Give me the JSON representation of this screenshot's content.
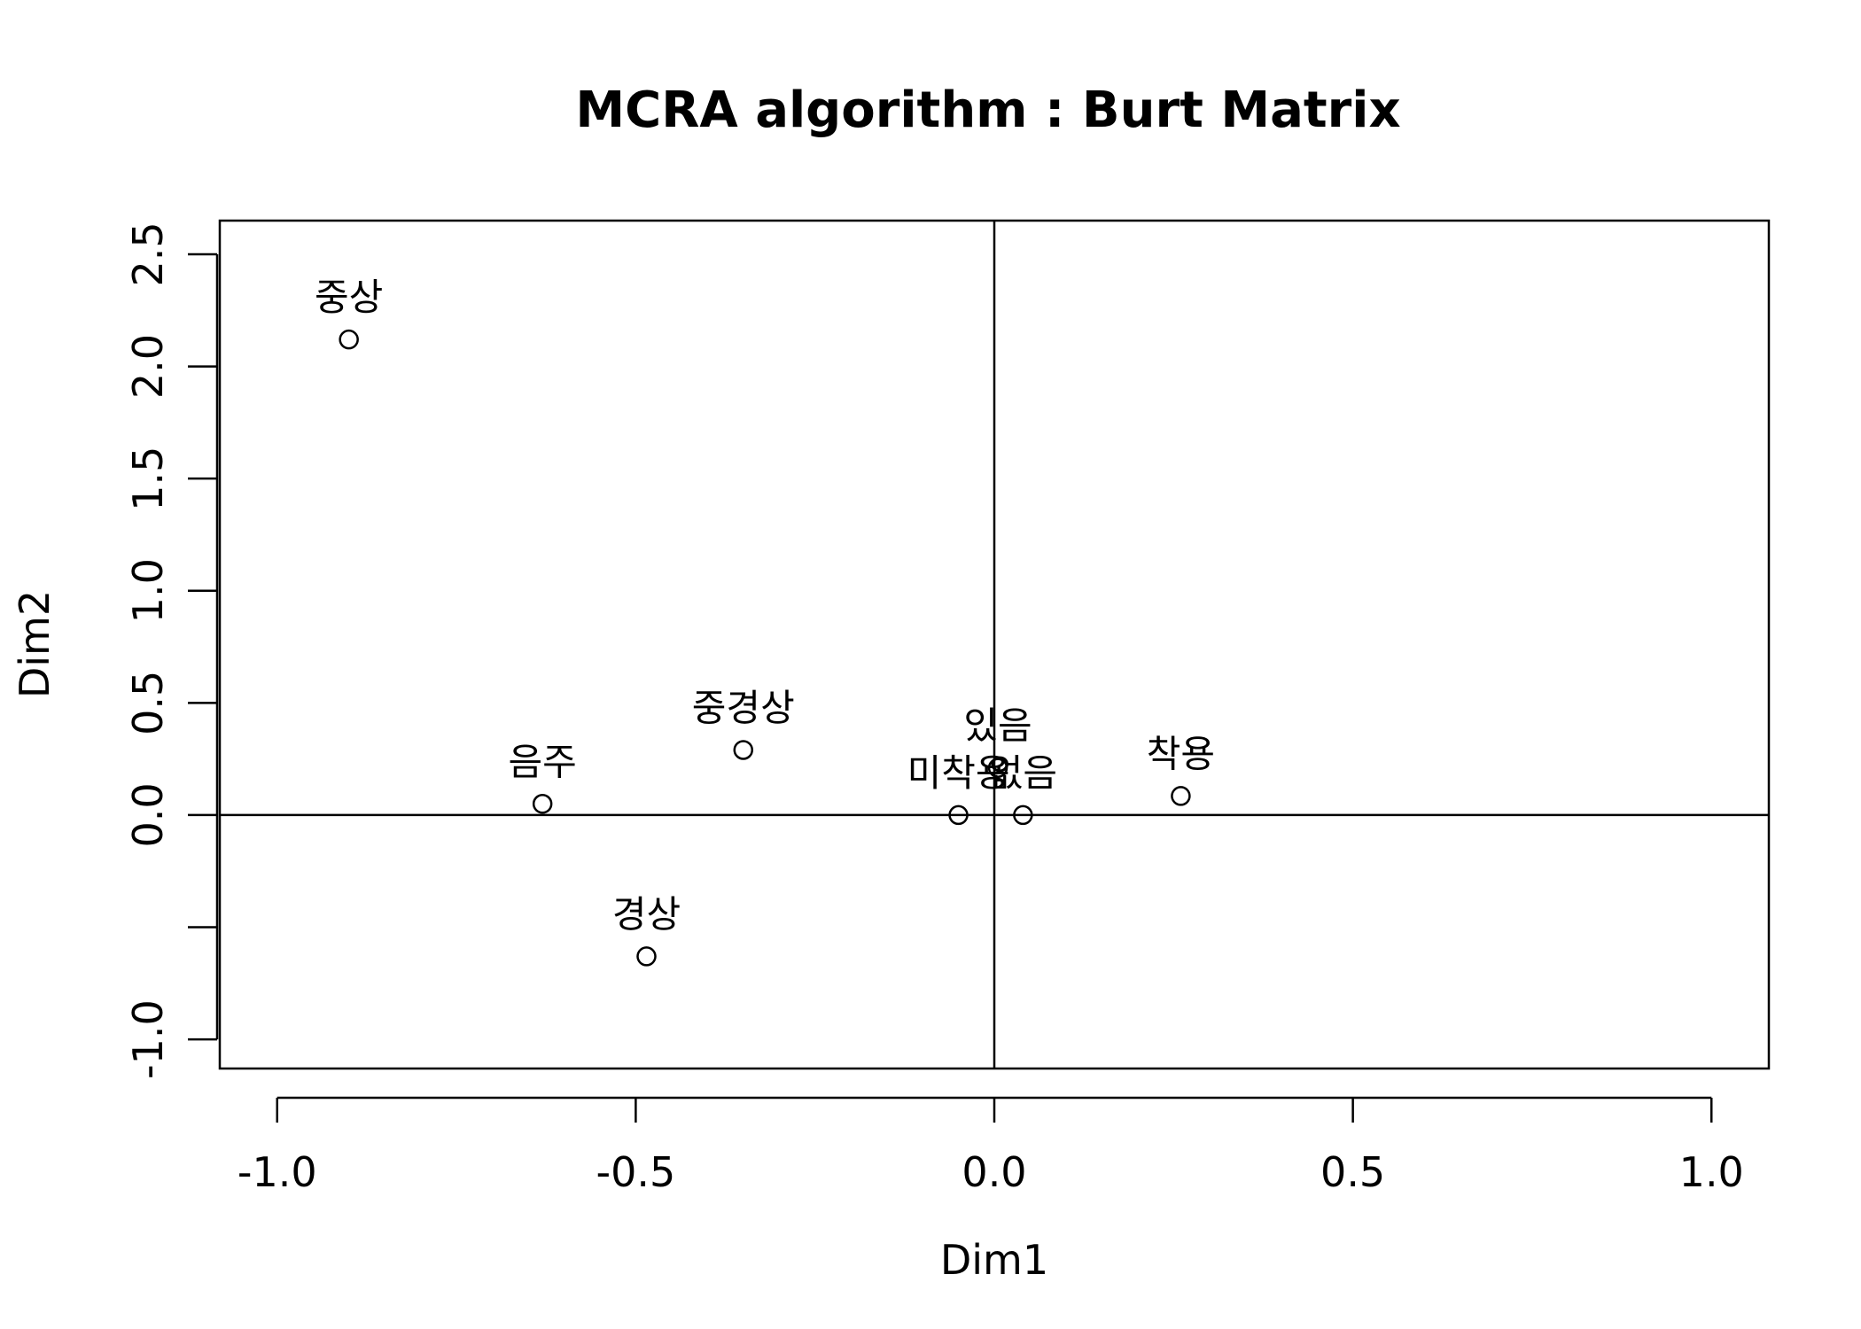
{
  "chart_data": {
    "type": "scatter",
    "title": "MCRA algorithm : Burt Matrix",
    "xlabel": "Dim1",
    "ylabel": "Dim2",
    "xlim": [
      -1.08,
      1.08
    ],
    "ylim": [
      -1.13,
      2.65
    ],
    "x_ticks": [
      {
        "value": -1.0,
        "label": "-1.0"
      },
      {
        "value": -0.5,
        "label": "-0.5"
      },
      {
        "value": 0.0,
        "label": "0.0"
      },
      {
        "value": 0.5,
        "label": "0.5"
      },
      {
        "value": 1.0,
        "label": "1.0"
      }
    ],
    "y_ticks": [
      {
        "value": -1.0,
        "label": "-1.0"
      },
      {
        "value": -0.5,
        "label": ""
      },
      {
        "value": 0.0,
        "label": "0.0"
      },
      {
        "value": 0.5,
        "label": "0.5"
      },
      {
        "value": 1.0,
        "label": "1.0"
      },
      {
        "value": 1.5,
        "label": "1.5"
      },
      {
        "value": 2.0,
        "label": "2.0"
      },
      {
        "value": 2.5,
        "label": "2.5"
      }
    ],
    "reference_lines": {
      "x": 0,
      "y": 0
    },
    "points": [
      {
        "label": "중상",
        "x": -0.9,
        "y": 2.12
      },
      {
        "label": "중경상",
        "x": -0.35,
        "y": 0.29
      },
      {
        "label": "음주",
        "x": -0.63,
        "y": 0.05
      },
      {
        "label": "경상",
        "x": -0.485,
        "y": -0.63
      },
      {
        "label": "미착용",
        "x": -0.05,
        "y": 0.0
      },
      {
        "label": "있음",
        "x": 0.005,
        "y": 0.21
      },
      {
        "label": "없음",
        "x": 0.04,
        "y": 0.0
      },
      {
        "label": "착용",
        "x": 0.26,
        "y": 0.085
      }
    ]
  }
}
